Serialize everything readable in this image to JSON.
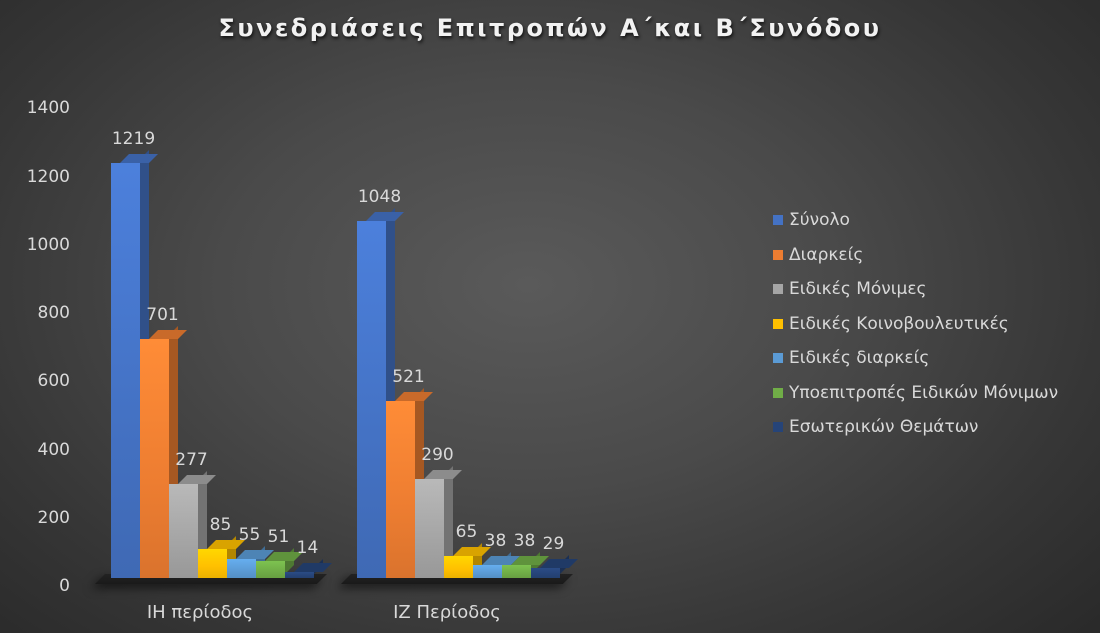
{
  "chart_data": {
    "type": "bar",
    "title": "Συνεδριάσεις Επιτροπών  Α΄και Β΄Συνόδου",
    "xlabel": "",
    "ylabel": "",
    "ylim": [
      0,
      1400
    ],
    "yticks": [
      0,
      200,
      400,
      600,
      800,
      1000,
      1200,
      1400
    ],
    "grid": false,
    "legend_position": "right",
    "style": "3d-clustered-column",
    "categories": [
      "ΙΗ περίοδος",
      "ΙΖ Περίοδος"
    ],
    "series": [
      {
        "name": "Σύνολο",
        "color": "#4472c4",
        "values": [
          1219,
          1048
        ]
      },
      {
        "name": "Διαρκείς",
        "color": "#ed7d31",
        "values": [
          701,
          521
        ]
      },
      {
        "name": "Ειδικές Μόνιμες",
        "color": "#a5a5a5",
        "values": [
          277,
          290
        ]
      },
      {
        "name": "Ειδικές Κοινοβουλευτικές",
        "color": "#ffc000",
        "values": [
          85,
          65
        ]
      },
      {
        "name": "Ειδικές διαρκείς",
        "color": "#5b9bd5",
        "values": [
          55,
          38
        ]
      },
      {
        "name": "Υποεπιτροπές Ειδικών Μόνιμων",
        "color": "#70ad47",
        "values": [
          51,
          38
        ]
      },
      {
        "name": "Εσωτερικών Θεμάτων",
        "color": "#264478",
        "values": [
          14,
          29
        ]
      }
    ]
  },
  "title": "Συνεδριάσεις Επιτροπών  Α΄και Β΄Συνόδου",
  "yticks": [
    "0",
    "200",
    "400",
    "600",
    "800",
    "1000",
    "1200",
    "1400"
  ],
  "categories": [
    "ΙΗ περίοδος",
    "ΙΖ Περίοδος"
  ],
  "legend": [
    "Σύνολο",
    "Διαρκείς",
    "Ειδικές Μόνιμες",
    "Ειδικές Κοινοβουλευτικές",
    "Ειδικές διαρκείς",
    "Υποεπιτροπές Ειδικών Μόνιμων",
    "Εσωτερικών Θεμάτων"
  ]
}
